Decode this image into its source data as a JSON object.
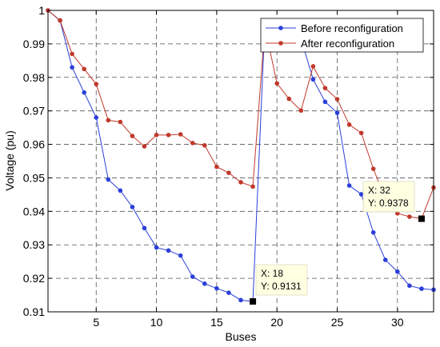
{
  "chart_data": {
    "type": "line",
    "xlabel": "Buses",
    "ylabel": "Voltage (pu)",
    "xlim": [
      1,
      33
    ],
    "ylim": [
      0.91,
      1.0
    ],
    "xticks": [
      5,
      10,
      15,
      20,
      25,
      30
    ],
    "yticks": [
      0.91,
      0.92,
      0.93,
      0.94,
      0.95,
      0.96,
      0.97,
      0.98,
      0.99,
      1.0
    ],
    "ytick_labels": [
      "0.91",
      "0.92",
      "0.93",
      "0.94",
      "0.95",
      "0.96",
      "0.97",
      "0.98",
      "0.99",
      "1"
    ],
    "grid": true,
    "legend_position": "top-right",
    "series": [
      {
        "name": "Before reconfiguration",
        "color": "#2b3fd9",
        "x": [
          1,
          2,
          3,
          4,
          5,
          6,
          7,
          8,
          9,
          10,
          11,
          12,
          13,
          14,
          15,
          16,
          17,
          18,
          19,
          20,
          21,
          22,
          23,
          24,
          25,
          26,
          27,
          28,
          29,
          30,
          31,
          32,
          33
        ],
        "values": [
          1.0,
          0.997,
          0.983,
          0.9755,
          0.968,
          0.9495,
          0.9462,
          0.9413,
          0.935,
          0.9292,
          0.9283,
          0.9268,
          0.9205,
          0.9184,
          0.917,
          0.9157,
          0.9135,
          0.9131,
          0.9965,
          0.9929,
          0.9922,
          0.9916,
          0.9794,
          0.9727,
          0.9694,
          0.9477,
          0.9451,
          0.9337,
          0.9255,
          0.922,
          0.9178,
          0.9169,
          0.9166
        ]
      },
      {
        "name": "After reconfiguration",
        "color": "#c0392b",
        "x": [
          1,
          2,
          3,
          4,
          5,
          6,
          7,
          8,
          9,
          10,
          11,
          12,
          13,
          14,
          15,
          16,
          17,
          18,
          19,
          20,
          21,
          22,
          23,
          24,
          25,
          26,
          27,
          28,
          29,
          30,
          31,
          32,
          33
        ],
        "values": [
          1.0,
          0.997,
          0.987,
          0.9825,
          0.978,
          0.9672,
          0.9667,
          0.9625,
          0.9594,
          0.9628,
          0.9628,
          0.963,
          0.9604,
          0.9597,
          0.9533,
          0.9515,
          0.9487,
          0.9474,
          0.9952,
          0.9782,
          0.9736,
          0.9701,
          0.9833,
          0.9768,
          0.9735,
          0.9659,
          0.9634,
          0.9527,
          0.9437,
          0.9394,
          0.9384,
          0.9378,
          0.9471
        ]
      }
    ],
    "datatips": [
      {
        "x_text": "X: 18",
        "y_text": "Y: 0.9131",
        "x": 18,
        "y": 0.9131,
        "series": 0
      },
      {
        "x_text": "X: 32",
        "y_text": "Y: 0.9378",
        "x": 32,
        "y": 0.9378,
        "series": 1
      }
    ]
  }
}
